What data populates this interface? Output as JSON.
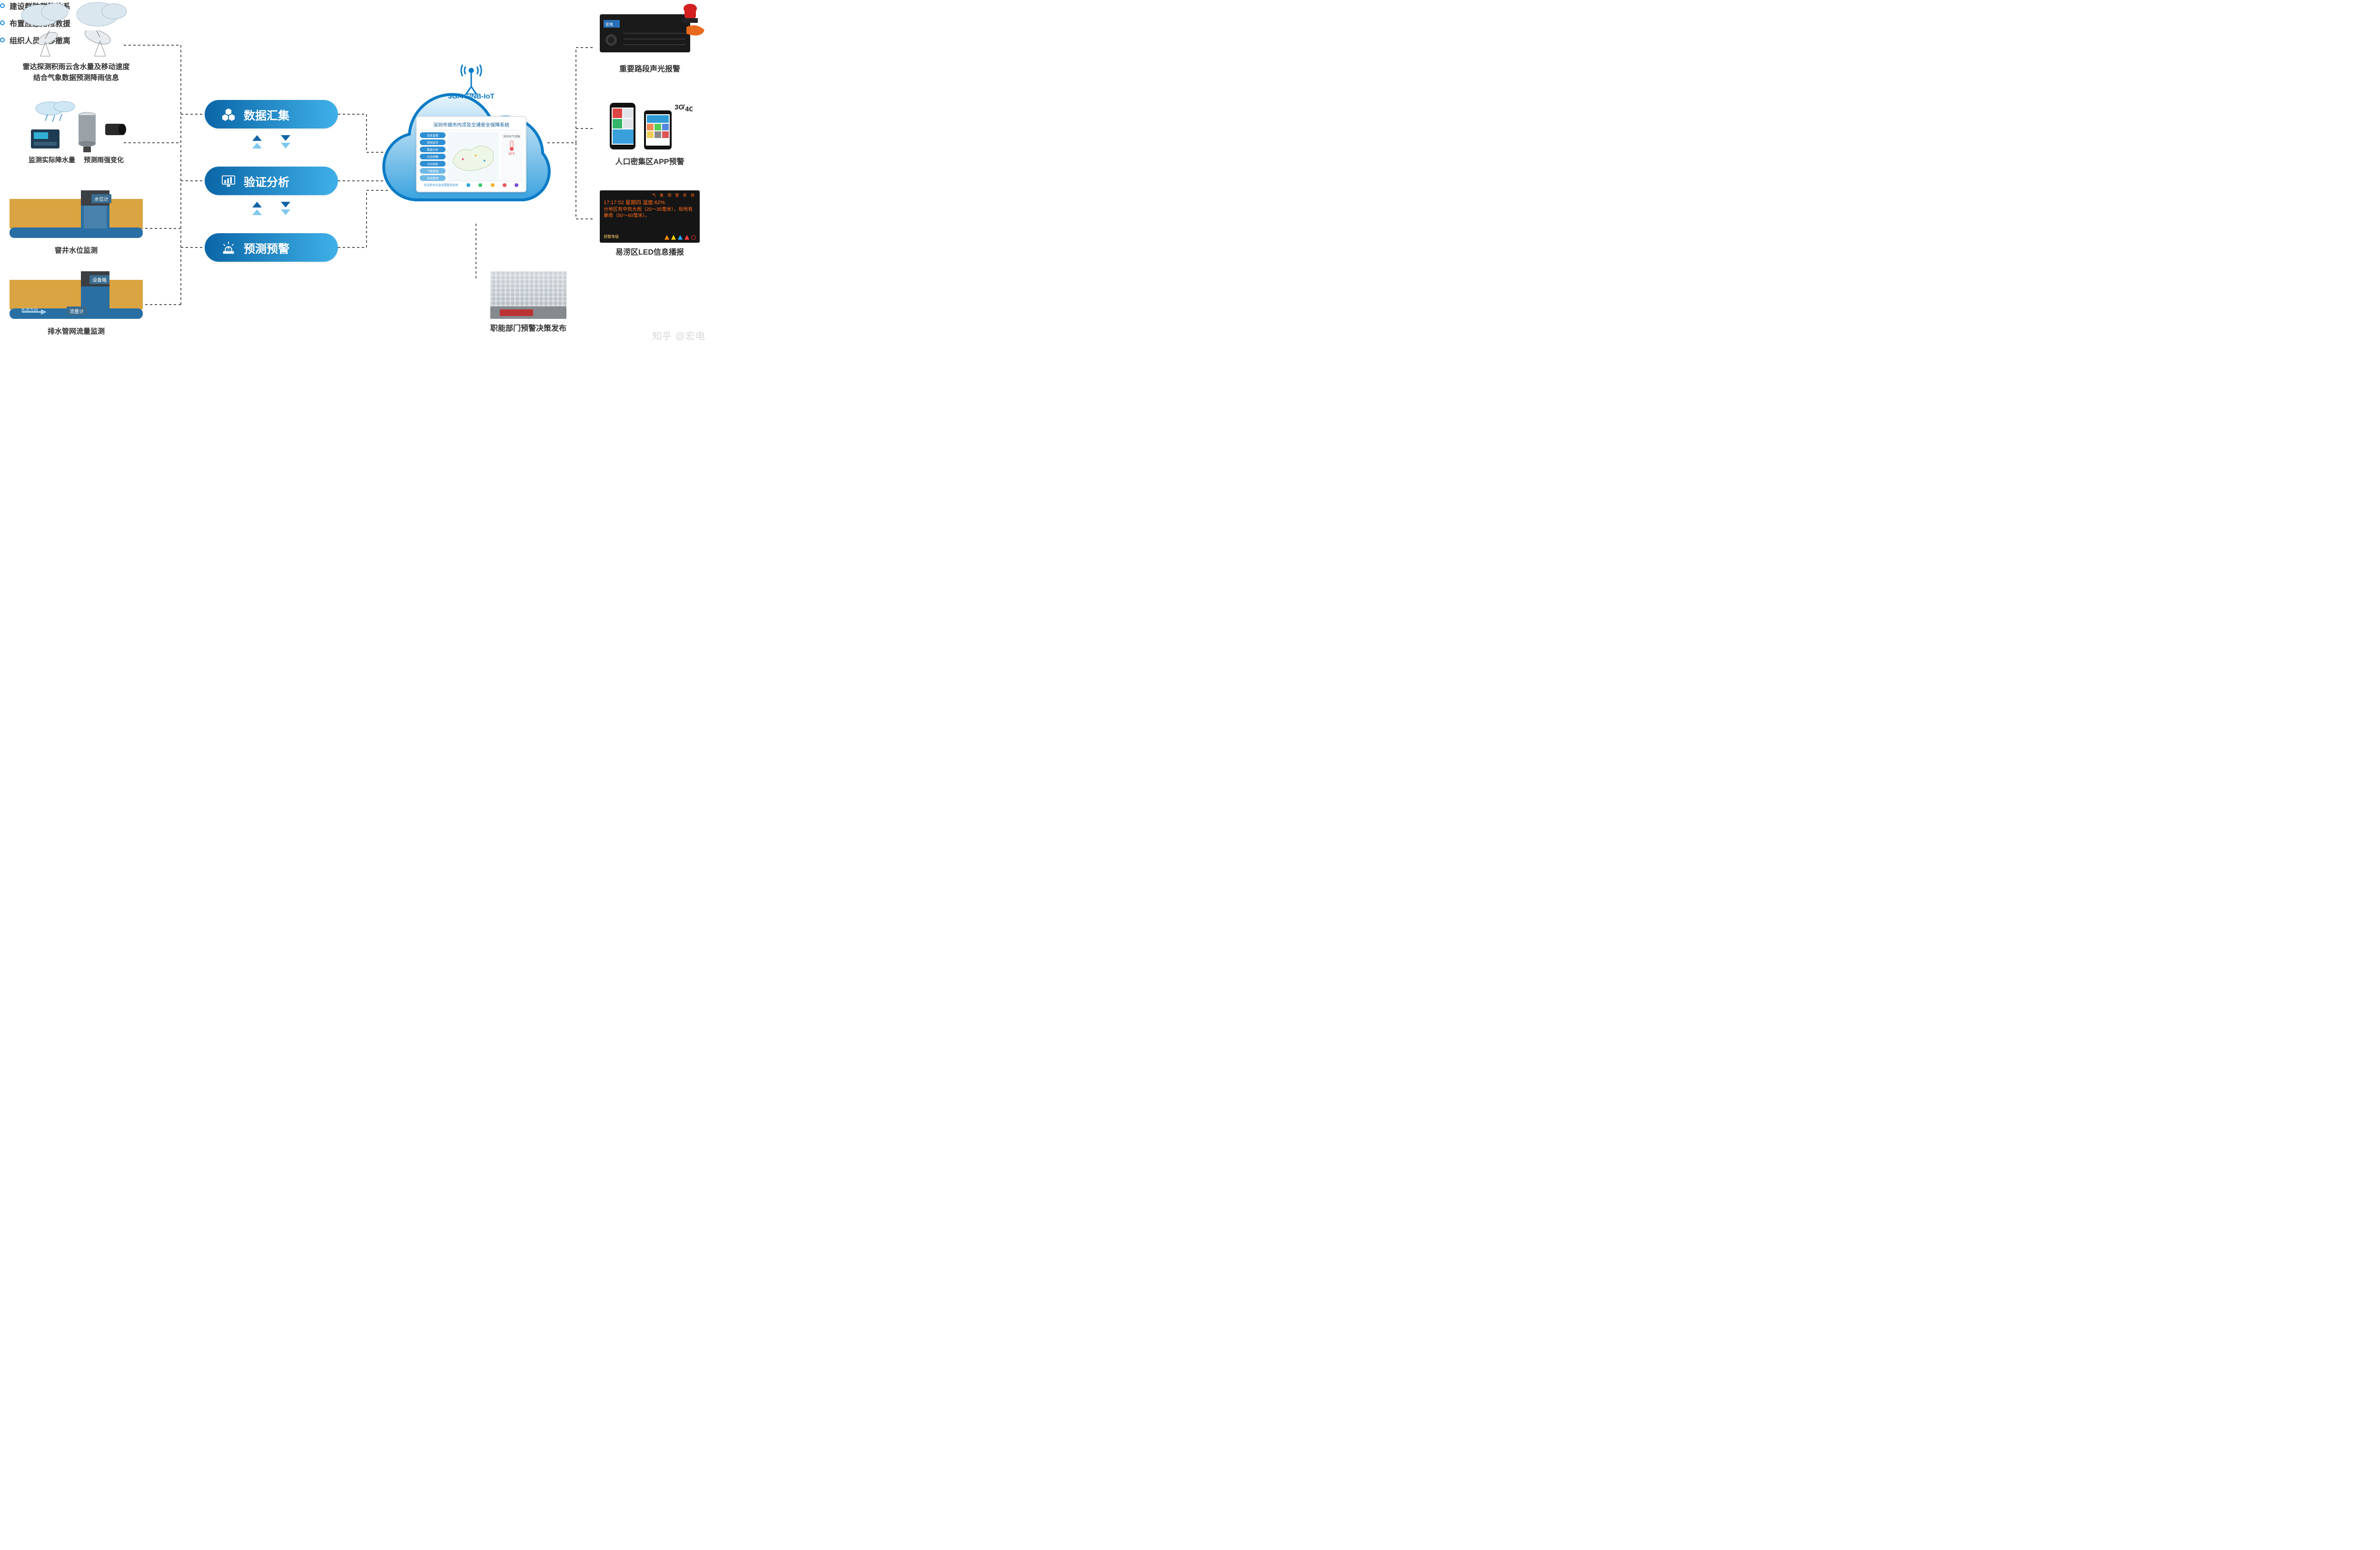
{
  "colors": {
    "text": "#333333",
    "pill_gradient_from": "#0b66a7",
    "pill_gradient_to": "#3fb0e8",
    "arrow_dark": "#1064a4",
    "arrow_light": "#7fc8ef",
    "cloud_stroke": "#0b7bc6",
    "cloud_fill_top": "#e9f5fc",
    "cloud_fill_bottom": "#3aa3df",
    "wire": "#555555",
    "pipe_body": "#d9a441",
    "pipe_tube": "#2a6fa3",
    "led_text": "#ff6a1a",
    "led_title": "#ff6a1a",
    "bullet": "#1a8be0",
    "rack": "#1a1a1a",
    "beacon_red": "#d42020",
    "beacon_orange": "#e86a1e"
  },
  "sensors": {
    "radar": {
      "caption_line1": "雷达探测积雨云含水量及移动速度",
      "caption_line2": "结合气象数据预测降雨信息"
    },
    "rain": {
      "caption_left": "监测实际降水量",
      "caption_right": "预测雨强变化"
    },
    "manhole": {
      "caption": "窨井水位监测",
      "tag_gauge": "水位计"
    },
    "drain": {
      "caption": "排水管网流量监测",
      "tag_box": "设备箱",
      "tag_flow": "流量计",
      "tag_dir": "水流方向"
    }
  },
  "pills": [
    {
      "label": "数据汇集",
      "icon": "hex"
    },
    {
      "label": "验证分析",
      "icon": "chart"
    },
    {
      "label": "预测预警",
      "icon": "alarm"
    }
  ],
  "platform": {
    "net_label": "3G/4G/NB-IoT",
    "screen_title": "深圳市城市内涝及交通安全保障系统",
    "menu": [
      "信息直看",
      "视频监控",
      "数据分析",
      "内涝预警",
      "GIS系统",
      "气象数据",
      "系统管理"
    ],
    "menu_colors": [
      "#2f8fd3",
      "#2f8fd3",
      "#2f8fd3",
      "#2f8fd3",
      "#2f8fd3",
      "#6fb9e6",
      "#6fb9e6"
    ],
    "side_title": "深圳天气预报",
    "side_temp": "32°C",
    "footer_label": "低洼积水应急处置服务系统",
    "footer_colors": [
      "#2fa6e0",
      "#3cc56e",
      "#f0b42a",
      "#e95555",
      "#7a4ed0"
    ],
    "label": "城市洪涝监测预警决策平台"
  },
  "outputs": {
    "alarm": {
      "caption": "重要路段声光报警"
    },
    "app": {
      "caption": "人口密集区APP预警",
      "net_label": "3G/4G"
    },
    "led": {
      "caption": "易涝区LED信息播报",
      "title": "气 象 预 警 系 统",
      "line1": "17:17:52 星期四 湿度:62%",
      "line2": "分地区有中到大雨（20～35毫米），局地有暴雨（50～60毫米）。",
      "footer_label": "预警等级",
      "footer_icon_colors": [
        "#ff8a00",
        "#ffd400",
        "#2aa7ff",
        "#ff4040"
      ]
    },
    "bullets": [
      "建设群防群策体系",
      "布置应急抢险救援",
      "组织人员转移撤离"
    ],
    "building": {
      "caption": "职能部门预警决策发布"
    }
  },
  "watermark": "知乎 @宏电"
}
